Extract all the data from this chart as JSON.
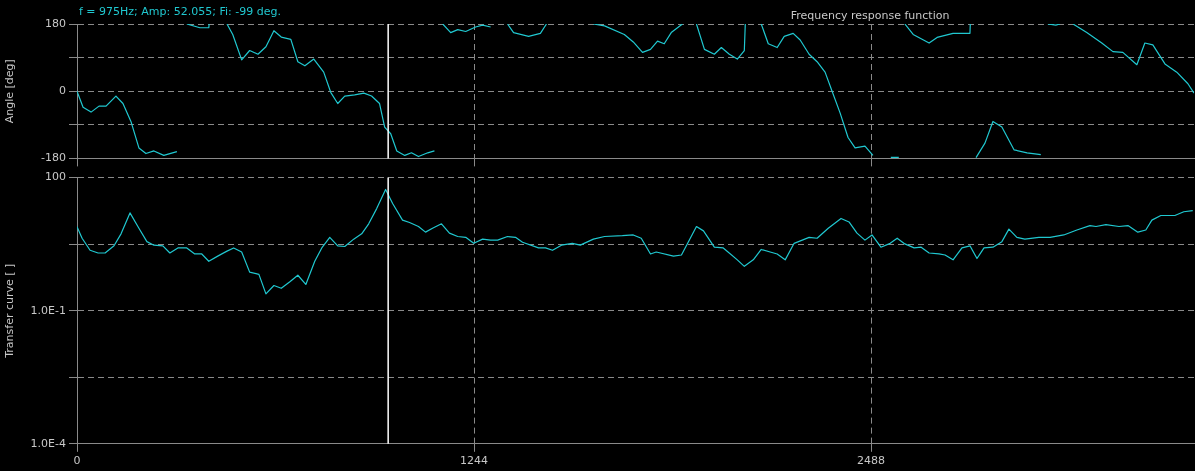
{
  "chart_data": [
    {
      "type": "line",
      "title": "Frequency response function",
      "ylabel": "Angle [deg]",
      "annotations": [
        "f = 975Hz; Amp: 52.055; Fi: -99 deg."
      ],
      "xlim": [
        0,
        3500
      ],
      "xticks": [
        0,
        1244,
        2488
      ],
      "ylim": [
        -180,
        180
      ],
      "yticks": [
        -180,
        {
          "value": -90,
          "label": null
        },
        0,
        {
          "value": 90,
          "label": null
        },
        180
      ],
      "grid": true,
      "legend": false,
      "tick_labels": "y",
      "line_style": "solid",
      "ref_lines": [
        {
          "axis": "x",
          "value": 975,
          "color": "#ffffff"
        }
      ],
      "series": [
        {
          "color": "#20c8d0",
          "marker": "none",
          "x": [
            0,
            19,
            44,
            69,
            91,
            122,
            144,
            169,
            194,
            216,
            241,
            272,
            313,
            330,
            344,
            385,
            413,
            414,
            440,
            470,
            488,
            516,
            541,
            567,
            592,
            617,
            640,
            670,
            692,
            714,
            742,
            773,
            795,
            817,
            839,
            870,
            899,
            923,
            948,
            964,
            983,
            1002,
            1027,
            1048,
            1070,
            1099,
            1120,
            1133,
            1146,
            1171,
            1193,
            1218,
            1249,
            1271,
            1296,
            1320,
            1349,
            1368,
            1415,
            1452,
            1471,
            1485,
            1618,
            1653,
            1715,
            1743,
            1772,
            1797,
            1819,
            1840,
            1862,
            1897,
            1920,
            1941,
            1966,
            1997,
            2019,
            2044,
            2069,
            2091,
            2094,
            2120,
            2144,
            2166,
            2194,
            2216,
            2244,
            2266,
            2294,
            2319,
            2344,
            2366,
            2391,
            2416,
            2438,
            2469,
            2494,
            2520,
            2550,
            2575,
            2585,
            2594,
            2620,
            2670,
            2695,
            2745,
            2798,
            2799,
            2808,
            2817,
            2845,
            2870,
            2898,
            2936,
            2977,
            3020,
            3030,
            3042,
            3067,
            3080,
            3100,
            3121,
            3164,
            3211,
            3246,
            3277,
            3321,
            3346,
            3371,
            3409,
            3446,
            3481,
            3500
          ],
          "values": [
            0,
            -43,
            -56,
            -40,
            -40,
            -13,
            -33,
            -81,
            -152,
            -167,
            -160,
            -172,
            -162,
            null,
            180,
            170,
            170,
            180,
            null,
            180,
            152,
            84,
            109,
            99,
            119,
            162,
            145,
            139,
            79,
            68,
            86,
            51,
            -3,
            -33,
            -13,
            -10,
            -5,
            -13,
            -33,
            -96,
            -114,
            -160,
            -172,
            -165,
            -175,
            -165,
            -160,
            null,
            180,
            157,
            165,
            160,
            172,
            177,
            172,
            null,
            180,
            157,
            147,
            155,
            180,
            null,
            180,
            175,
            152,
            132,
            104,
            112,
            134,
            127,
            157,
            180,
            null,
            180,
            112,
            99,
            117,
            99,
            86,
            109,
            180,
            null,
            180,
            127,
            117,
            147,
            155,
            137,
            99,
            79,
            51,
            0,
            -58,
            -124,
            -152,
            -147,
            -172,
            null,
            -177,
            -177,
            null,
            180,
            152,
            129,
            144,
            155,
            155,
            180,
            null,
            -178,
            -139,
            -81,
            -96,
            -157,
            -165,
            -170,
            null,
            180,
            177,
            180,
            null,
            180,
            157,
            129,
            106,
            104,
            71,
            129,
            124,
            73,
            51,
            20,
            -5
          ]
        }
      ]
    },
    {
      "type": "line",
      "ylabel": "Transfer curve [ ]",
      "log": "y",
      "xlim": [
        0,
        3500
      ],
      "xticks": [
        0,
        1244,
        2488
      ],
      "ylim": [
        0.0001,
        100
      ],
      "yticks": [
        {
          "value": 0.0001,
          "label": "1.0E-4"
        },
        {
          "value": 0.00316,
          "label": null
        },
        {
          "value": 0.1,
          "label": "1.0E-1"
        },
        {
          "value": 3.16,
          "label": null
        },
        100
      ],
      "grid": true,
      "legend": false,
      "line_style": "solid",
      "ref_lines": [
        {
          "axis": "x",
          "value": 975,
          "color": "#ffffff"
        }
      ],
      "series": [
        {
          "color": "#20c8d0",
          "marker": "none",
          "x": [
            0,
            16,
            41,
            66,
            88,
            116,
            138,
            166,
            194,
            219,
            241,
            269,
            291,
            316,
            344,
            369,
            391,
            413,
            441,
            470,
            491,
            516,
            541,
            570,
            592,
            617,
            640,
            667,
            692,
            717,
            745,
            767,
            792,
            817,
            839,
            867,
            892,
            914,
            939,
            967,
            989,
            1020,
            1042,
            1070,
            1092,
            1114,
            1142,
            1167,
            1193,
            1218,
            1243,
            1271,
            1296,
            1318,
            1349,
            1374,
            1396,
            1446,
            1468,
            1490,
            1518,
            1552,
            1577,
            1618,
            1653,
            1709,
            1743,
            1768,
            1797,
            1815,
            1869,
            1894,
            1941,
            1963,
            1997,
            2025,
            2069,
            2091,
            2119,
            2144,
            2172,
            2194,
            2219,
            2247,
            2294,
            2319,
            2354,
            2394,
            2419,
            2444,
            2469,
            2491,
            2519,
            2548,
            2570,
            2594,
            2623,
            2645,
            2670,
            2701,
            2720,
            2745,
            2773,
            2798,
            2820,
            2842,
            2870,
            2898,
            2920,
            2945,
            2970,
            3014,
            3049,
            3092,
            3133,
            3174,
            3193,
            3224,
            3265,
            3293,
            3324,
            3349,
            3368,
            3396,
            3440,
            3468,
            3496
          ],
          "values": [
            7.8,
            4.3,
            2.3,
            2.0,
            2.0,
            2.9,
            5.4,
            16,
            7.2,
            3.6,
            3.0,
            2.9,
            2.0,
            2.6,
            2.6,
            1.9,
            1.9,
            1.3,
            1.7,
            2.2,
            2.6,
            2.1,
            0.74,
            0.66,
            0.24,
            0.37,
            0.32,
            0.45,
            0.63,
            0.39,
            1.3,
            2.6,
            4.5,
            2.9,
            2.8,
            4.1,
            5.4,
            9.1,
            20,
            54,
            26,
            11,
            9.7,
            7.9,
            5.9,
            7.2,
            9.1,
            5.6,
            4.7,
            4.5,
            3.3,
            4.1,
            3.9,
            3.9,
            4.7,
            4.5,
            3.5,
            2.6,
            2.6,
            2.3,
            3.0,
            3.3,
            3.0,
            4.1,
            4.7,
            4.9,
            5.1,
            4.3,
            1.9,
            2.1,
            1.7,
            1.8,
            7.9,
            6.3,
            2.7,
            2.6,
            1.4,
            1.0,
            1.4,
            2.4,
            2.1,
            1.9,
            1.4,
            3.3,
            4.5,
            4.3,
            7.2,
            12,
            10,
            5.6,
            3.9,
            5.1,
            2.7,
            3.3,
            4.3,
            3.2,
            2.6,
            2.7,
            2.0,
            1.9,
            1.8,
            1.4,
            2.6,
            2.9,
            1.5,
            2.6,
            2.7,
            3.6,
            6.9,
            4.5,
            4.1,
            4.5,
            4.5,
            5.1,
            6.6,
            8.3,
            7.9,
            8.7,
            7.9,
            8.3,
            5.9,
            6.6,
            11,
            14,
            14,
            17,
            18
          ]
        }
      ]
    }
  ]
}
